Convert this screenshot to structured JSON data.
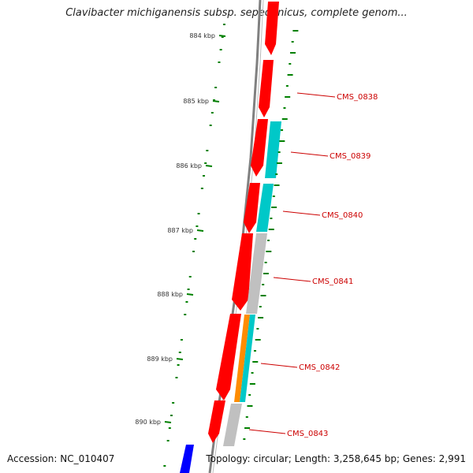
{
  "title": "Clavibacter michiganensis subsp. sepedonicus, complete genom...",
  "footer": {
    "accession": "Accession: NC_010407",
    "topology": "Topology: circular; Length: 3,258,645 bp; Genes: 2,991"
  },
  "colors": {
    "cds": "#ff0000",
    "cyan_feature": "#00c8c8",
    "gray_feature": "#c0c0c0",
    "orange_feature": "#ff8c00",
    "blue_feature": "#0000ff",
    "backbone": "#808080",
    "gc_ticks": "#008000",
    "label": "#cc0000"
  },
  "ticks": [
    {
      "kbp": 884,
      "label": "884 kbp"
    },
    {
      "kbp": 885,
      "label": "885 kbp"
    },
    {
      "kbp": 886,
      "label": "886 kbp"
    },
    {
      "kbp": 887,
      "label": "887 kbp"
    },
    {
      "kbp": 888,
      "label": "888 kbp"
    },
    {
      "kbp": 889,
      "label": "889 kbp"
    },
    {
      "kbp": 890,
      "label": "890 kbp"
    }
  ],
  "genes": [
    {
      "label": "CMS_0838"
    },
    {
      "label": "CMS_0839"
    },
    {
      "label": "CMS_0840"
    },
    {
      "label": "CMS_0841"
    },
    {
      "label": "CMS_0842"
    },
    {
      "label": "CMS_0843"
    }
  ]
}
